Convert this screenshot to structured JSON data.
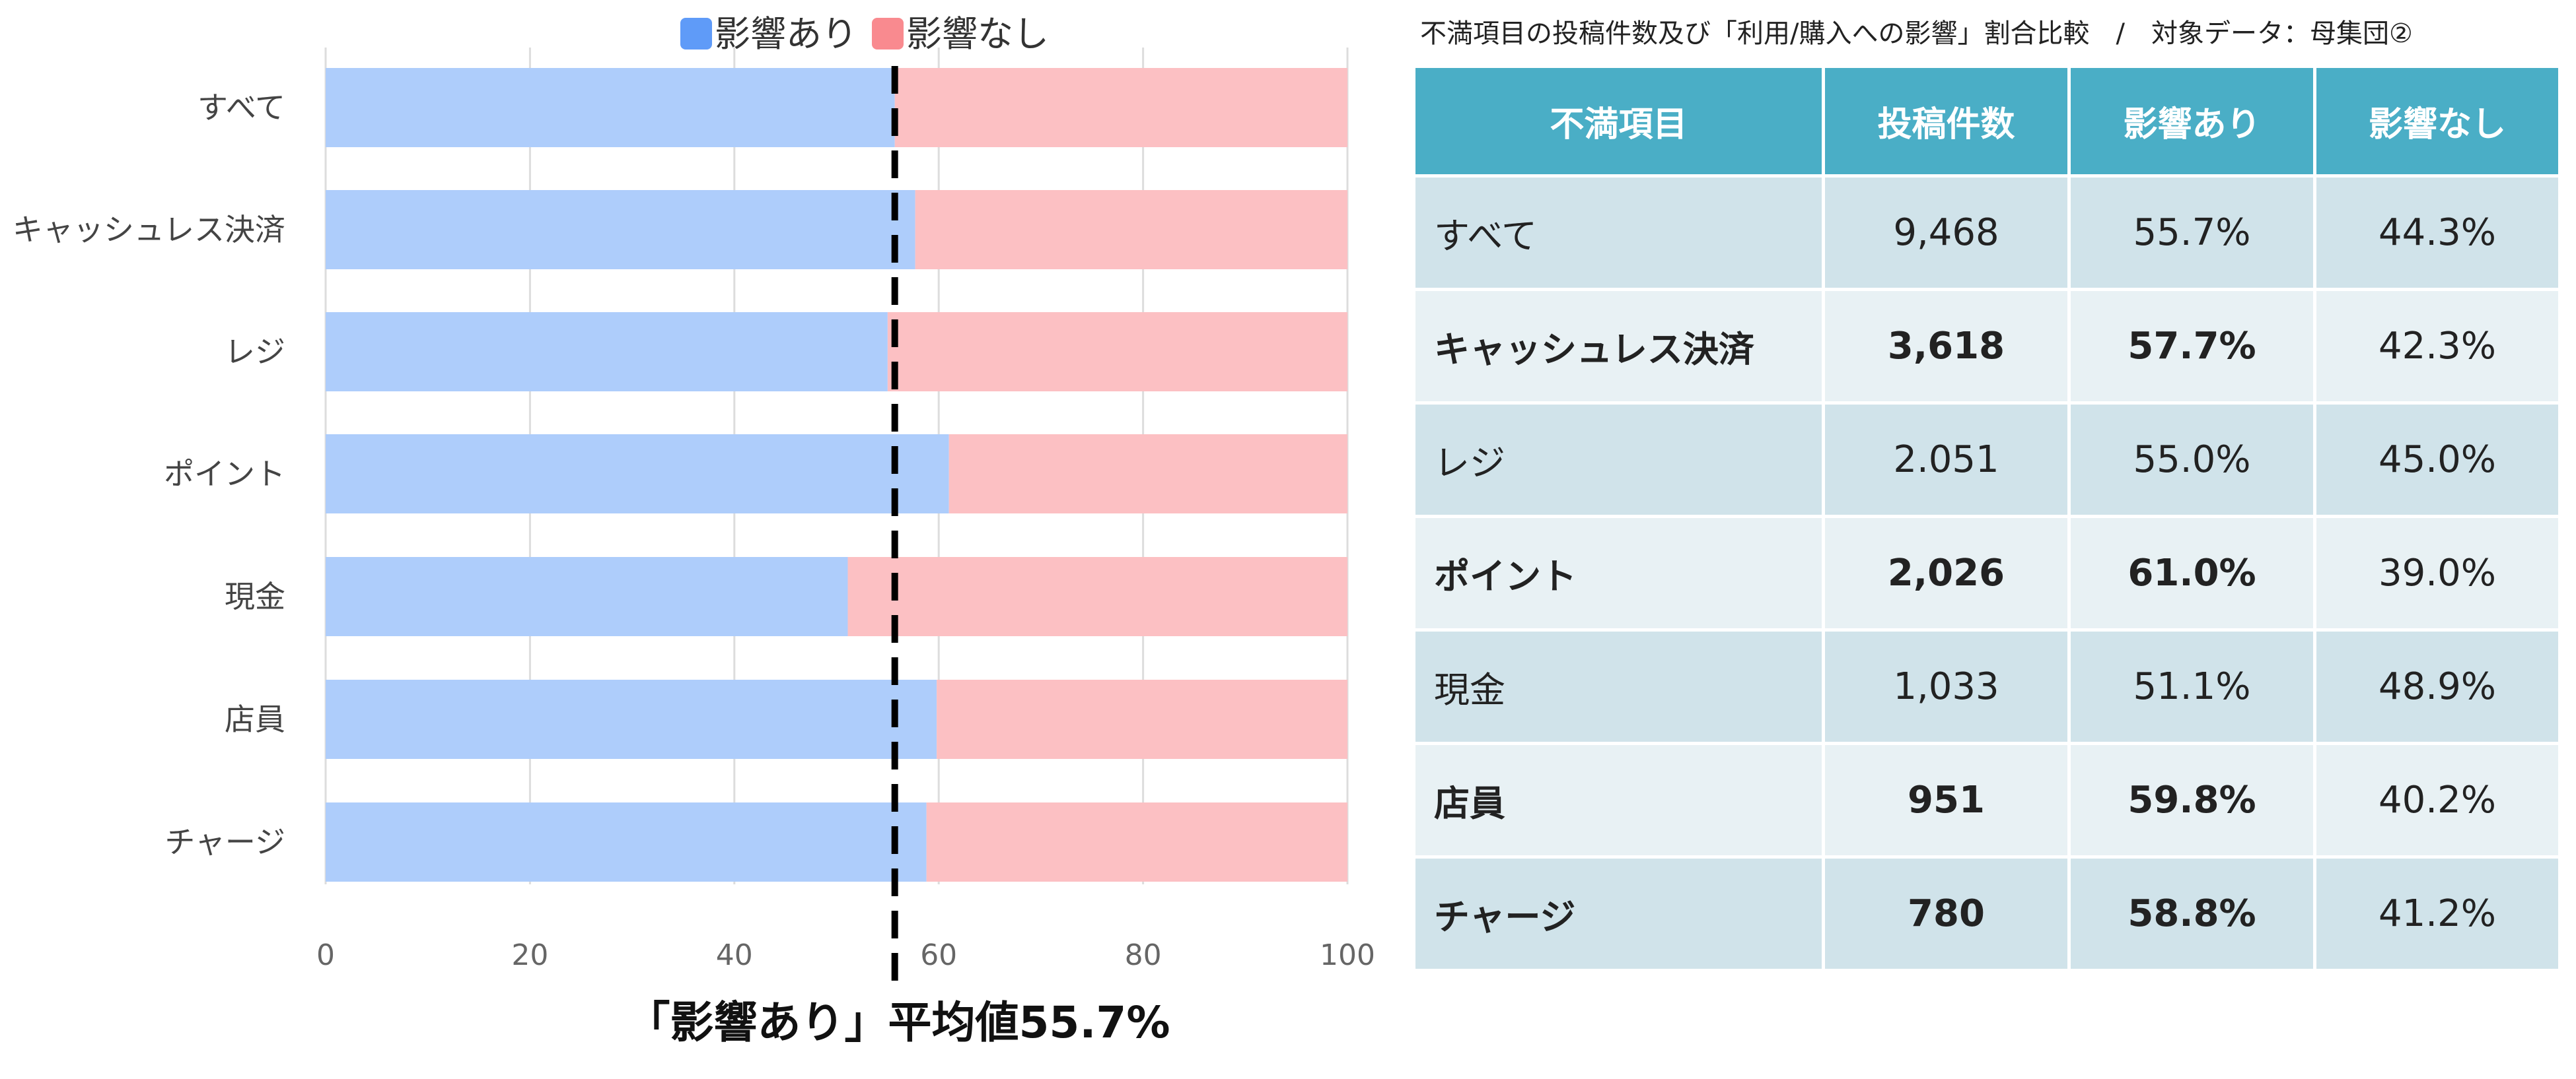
{
  "chart_data": {
    "type": "bar",
    "stacked": true,
    "orientation": "horizontal",
    "categories": [
      "すべて",
      "キャッシュレス決済",
      "レジ",
      "ポイント",
      "現金",
      "店員",
      "チャージ"
    ],
    "series": [
      {
        "name": "影響あり",
        "values": [
          55.7,
          57.7,
          55.0,
          61.0,
          51.1,
          59.8,
          58.8
        ],
        "color": "#aecdfb"
      },
      {
        "name": "影響なし",
        "values": [
          44.3,
          42.3,
          45.0,
          39.0,
          48.9,
          40.2,
          41.2
        ],
        "color": "#fcc0c3"
      }
    ],
    "legend_colors": [
      "#5f9bf8",
      "#f98a8f"
    ],
    "xlim": [
      0,
      100
    ],
    "xticks": [
      "0",
      "20",
      "40",
      "60",
      "80",
      "100"
    ],
    "grid": true,
    "legend": "top",
    "reference_line": {
      "value": 55.7,
      "style": "dashed"
    },
    "reference_label": "「影響あり」平均値55.7%"
  },
  "table": {
    "title": "不満項目の投稿件数及び「利用/購入への影響」割合比較　/　対象データ：母集団②",
    "headers": [
      "不満項目",
      "投稿件数",
      "影響あり",
      "影響なし"
    ],
    "rows": [
      {
        "cells": [
          "すべて",
          "9,468",
          "55.7%",
          "44.3%"
        ],
        "bold": [
          false,
          false,
          false,
          false
        ]
      },
      {
        "cells": [
          "キャッシュレス決済",
          "3,618",
          "57.7%",
          "42.3%"
        ],
        "bold": [
          true,
          true,
          true,
          false
        ]
      },
      {
        "cells": [
          "レジ",
          "2.051",
          "55.0%",
          "45.0%"
        ],
        "bold": [
          false,
          false,
          false,
          false
        ]
      },
      {
        "cells": [
          "ポイント",
          "2,026",
          "61.0%",
          "39.0%"
        ],
        "bold": [
          true,
          true,
          true,
          false
        ]
      },
      {
        "cells": [
          "現金",
          "1,033",
          "51.1%",
          "48.9%"
        ],
        "bold": [
          false,
          false,
          false,
          false
        ]
      },
      {
        "cells": [
          "店員",
          "951",
          "59.8%",
          "40.2%"
        ],
        "bold": [
          true,
          true,
          true,
          false
        ]
      },
      {
        "cells": [
          "チャージ",
          "780",
          "58.8%",
          "41.2%"
        ],
        "bold": [
          true,
          true,
          true,
          false
        ]
      }
    ]
  }
}
